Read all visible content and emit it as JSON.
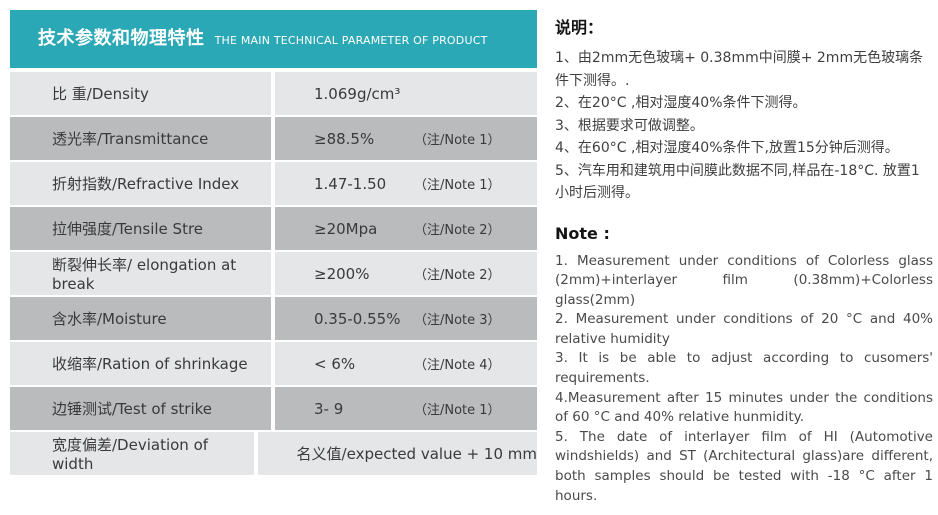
{
  "colors": {
    "teal": "#2AA8B5",
    "row_light": "#E5E6E7",
    "row_dark": "#B9BBBD",
    "table_text": "#3A3A3C",
    "note_text": "#4A4A4A"
  },
  "header": {
    "title_zh": "技术参数和物理特性",
    "title_en": "THE MAIN TECHNICAL PARAMETER OF PRODUCT"
  },
  "table": {
    "rows": [
      {
        "label": "比 重/Density",
        "value": "1.069g/cm³",
        "note": ""
      },
      {
        "label": "透光率/Transmittance",
        "value": "≥88.5%",
        "note": "（注/Note 1）"
      },
      {
        "label": "折射指数/Refractive Index",
        "value": "1.47-1.50",
        "note": "（注/Note 1）"
      },
      {
        "label": "拉伸强度/Tensile Stre",
        "value": "≥20Mpa",
        "note": "（注/Note 2）"
      },
      {
        "label": "断裂伸长率/ elongation at break",
        "value": "≥200%",
        "note": "（注/Note 2）"
      },
      {
        "label": "含水率/Moisture",
        "value": "0.35-0.55%",
        "note": "（注/Note 3）"
      },
      {
        "label": "收缩率/Ration of shrinkage",
        "value": "< 6%",
        "note": "（注/Note 4）"
      },
      {
        "label": "边锤测试/Test of strike",
        "value": "3- 9",
        "note": "（注/Note 1）"
      },
      {
        "label": "宽度偏差/Deviation of width",
        "value": "名义值/expected value + 10 mm",
        "note": ""
      }
    ]
  },
  "notes_zh": {
    "heading": "说明：",
    "items": [
      "1、由2mm无色玻璃+ 0.38mm中间膜+ 2mm无色玻璃条件下测得。.",
      "2、在20°C ,相对湿度40%条件下测得。",
      "3、根据要求可做调整。",
      "4、在60°C ,相对湿度40%条件下,放置15分钟后测得。",
      "5、汽车用和建筑用中间膜此数据不同,样品在-18°C. 放置1小时后测得。"
    ]
  },
  "notes_en": {
    "heading": "Note :",
    "items": [
      "1. Measurement under conditions of Colorless glass (2mm)+interlayer film (0.38mm)+Colorless glass(2mm)",
      "2. Measurement under conditions of 20 °C and 40% relative humidity",
      "3. It is be able to adjust according to cusomers' requirements.",
      "4.Measurement after 15 minutes under the conditions of 60 °C and 40% relative hunmidity.",
      "5. The date of interlayer film of HI (Automotive windshields) and ST (Architectural glass)are different, both samples should be tested with -18 °C after 1 hours."
    ]
  }
}
